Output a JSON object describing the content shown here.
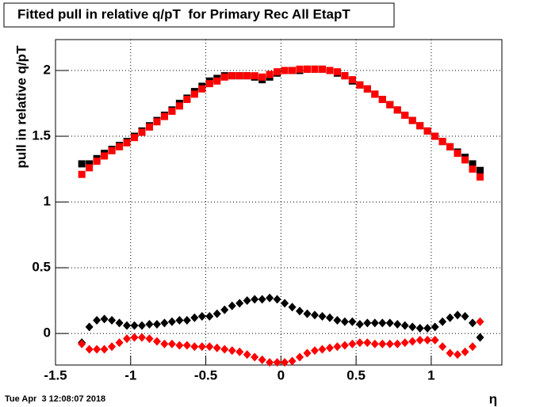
{
  "chart_data": {
    "type": "scatter",
    "title": "Fitted pull in relative q/pT  for Primary Rec All EtapT",
    "y_label": "pull in relative q/pT",
    "x_label": "η",
    "timestamp": "Tue Apr  3 12:08:07 2018",
    "xlim": [
      -1.5,
      1.47
    ],
    "ylim": [
      -0.24,
      2.235
    ],
    "xticks": [
      -1.5,
      -1,
      -0.5,
      0,
      0.5,
      1
    ],
    "yticks": [
      0,
      0.5,
      1,
      1.5,
      2
    ],
    "grid": true,
    "x": [
      -1.325,
      -1.275,
      -1.225,
      -1.175,
      -1.125,
      -1.075,
      -1.025,
      -0.975,
      -0.925,
      -0.875,
      -0.825,
      -0.775,
      -0.725,
      -0.675,
      -0.625,
      -0.575,
      -0.525,
      -0.475,
      -0.425,
      -0.375,
      -0.325,
      -0.275,
      -0.225,
      -0.175,
      -0.125,
      -0.075,
      -0.025,
      0.025,
      0.075,
      0.125,
      0.175,
      0.225,
      0.275,
      0.325,
      0.375,
      0.425,
      0.475,
      0.525,
      0.575,
      0.625,
      0.675,
      0.725,
      0.775,
      0.825,
      0.875,
      0.925,
      0.975,
      1.025,
      1.075,
      1.125,
      1.175,
      1.225,
      1.275,
      1.325
    ],
    "series": [
      {
        "color": "#000000",
        "marker": "square",
        "values": [
          1.29,
          1.29,
          1.33,
          1.37,
          1.4,
          1.43,
          1.46,
          1.5,
          1.54,
          1.58,
          1.62,
          1.66,
          1.7,
          1.75,
          1.79,
          1.84,
          1.88,
          1.92,
          1.94,
          1.96,
          1.96,
          1.96,
          1.96,
          1.95,
          1.93,
          1.95,
          1.98,
          2.0,
          2.0,
          2.0,
          2.01,
          2.01,
          2.01,
          2.0,
          1.98,
          1.96,
          1.92,
          1.89,
          1.86,
          1.82,
          1.78,
          1.74,
          1.7,
          1.66,
          1.62,
          1.58,
          1.54,
          1.5,
          1.46,
          1.42,
          1.38,
          1.34,
          1.29,
          1.24
        ]
      },
      {
        "color": "#ff0000",
        "marker": "square",
        "values": [
          1.21,
          1.26,
          1.31,
          1.35,
          1.39,
          1.42,
          1.45,
          1.49,
          1.53,
          1.57,
          1.61,
          1.65,
          1.69,
          1.73,
          1.78,
          1.82,
          1.86,
          1.9,
          1.92,
          1.95,
          1.96,
          1.96,
          1.96,
          1.96,
          1.95,
          1.97,
          1.99,
          2.0,
          2.0,
          2.01,
          2.01,
          2.01,
          2.01,
          2.0,
          1.99,
          1.96,
          1.93,
          1.89,
          1.86,
          1.82,
          1.78,
          1.74,
          1.7,
          1.66,
          1.62,
          1.58,
          1.54,
          1.5,
          1.46,
          1.42,
          1.37,
          1.32,
          1.25,
          1.19
        ]
      },
      {
        "color": "#000000",
        "marker": "diamond",
        "values": [
          -0.07,
          0.05,
          0.1,
          0.11,
          0.1,
          0.08,
          0.06,
          0.06,
          0.06,
          0.07,
          0.07,
          0.08,
          0.09,
          0.1,
          0.1,
          0.12,
          0.13,
          0.13,
          0.15,
          0.18,
          0.21,
          0.23,
          0.25,
          0.26,
          0.26,
          0.27,
          0.26,
          0.23,
          0.2,
          0.17,
          0.15,
          0.14,
          0.13,
          0.12,
          0.1,
          0.09,
          0.09,
          0.07,
          0.08,
          0.08,
          0.08,
          0.08,
          0.07,
          0.06,
          0.05,
          0.04,
          0.04,
          0.05,
          0.09,
          0.12,
          0.14,
          0.13,
          0.08,
          -0.03
        ]
      },
      {
        "color": "#ff0000",
        "marker": "diamond",
        "values": [
          -0.08,
          -0.12,
          -0.12,
          -0.12,
          -0.1,
          -0.07,
          -0.04,
          -0.03,
          -0.03,
          -0.04,
          -0.06,
          -0.08,
          -0.08,
          -0.09,
          -0.09,
          -0.1,
          -0.1,
          -0.1,
          -0.11,
          -0.12,
          -0.13,
          -0.14,
          -0.16,
          -0.18,
          -0.2,
          -0.22,
          -0.22,
          -0.22,
          -0.21,
          -0.18,
          -0.15,
          -0.13,
          -0.12,
          -0.11,
          -0.1,
          -0.09,
          -0.08,
          -0.07,
          -0.07,
          -0.08,
          -0.08,
          -0.08,
          -0.08,
          -0.07,
          -0.06,
          -0.05,
          -0.05,
          -0.05,
          -0.1,
          -0.15,
          -0.16,
          -0.14,
          -0.1,
          0.09
        ]
      }
    ]
  }
}
